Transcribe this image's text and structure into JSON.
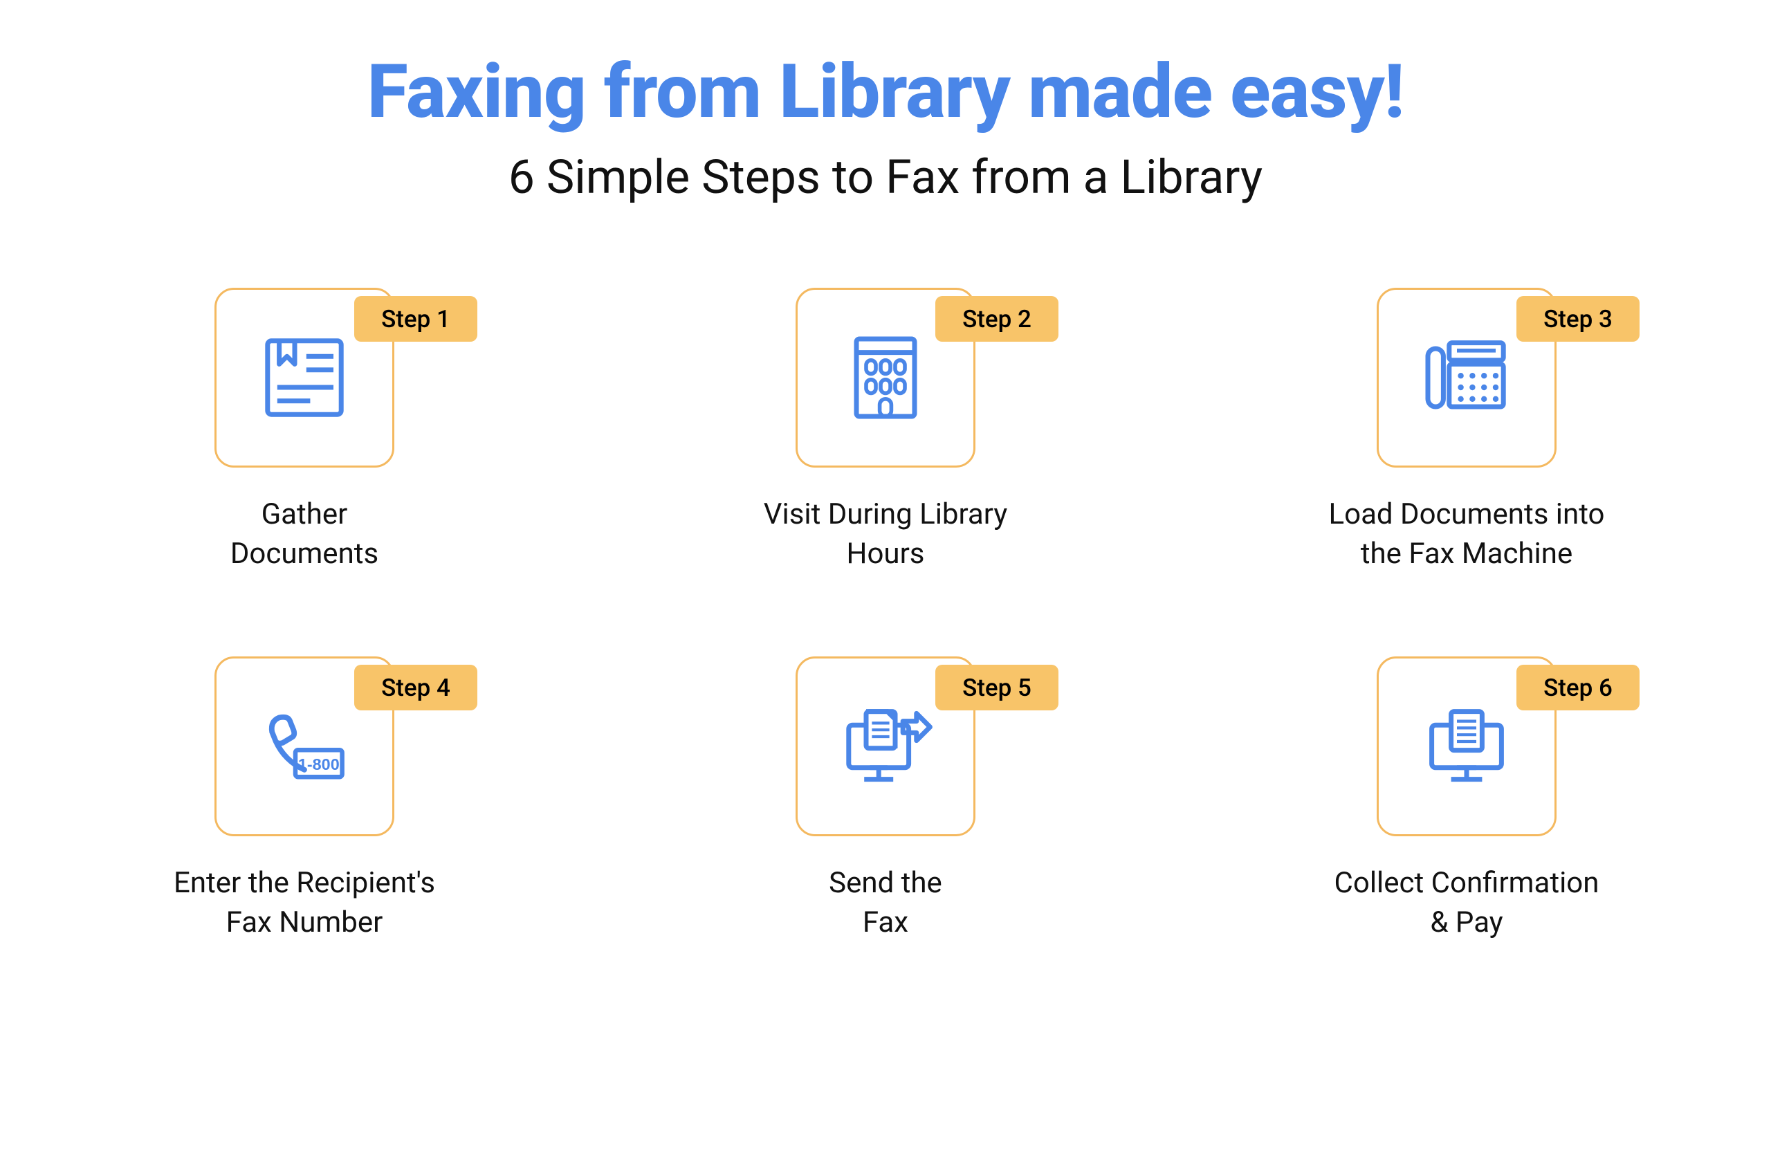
{
  "title": "Faxing from Library made easy!",
  "subtitle": "6 Simple Steps to Fax from a Library",
  "colors": {
    "title": "#4a86e8",
    "subtitle": "#111111",
    "card_border": "#f4b960",
    "badge_bg": "#f8c469",
    "icon_stroke": "#4a86e8",
    "label": "#111111",
    "background": "#ffffff"
  },
  "typography": {
    "title_size": 108,
    "subtitle_size": 68,
    "badge_size": 35,
    "label_size": 42
  },
  "grid": {
    "columns": 3,
    "rows": 2
  },
  "steps": [
    {
      "badge": "Step 1",
      "label": "Gather\nDocuments",
      "icon": "document"
    },
    {
      "badge": "Step 2",
      "label": "Visit During Library\nHours",
      "icon": "building"
    },
    {
      "badge": "Step 3",
      "label": "Load Documents into\nthe Fax Machine",
      "icon": "fax"
    },
    {
      "badge": "Step 4",
      "label": "Enter the Recipient's\nFax Number",
      "icon": "phone1800"
    },
    {
      "badge": "Step 5",
      "label": "Send the\nFax",
      "icon": "send"
    },
    {
      "badge": "Step 6",
      "label": "Collect Confirmation\n& Pay",
      "icon": "confirm"
    }
  ]
}
